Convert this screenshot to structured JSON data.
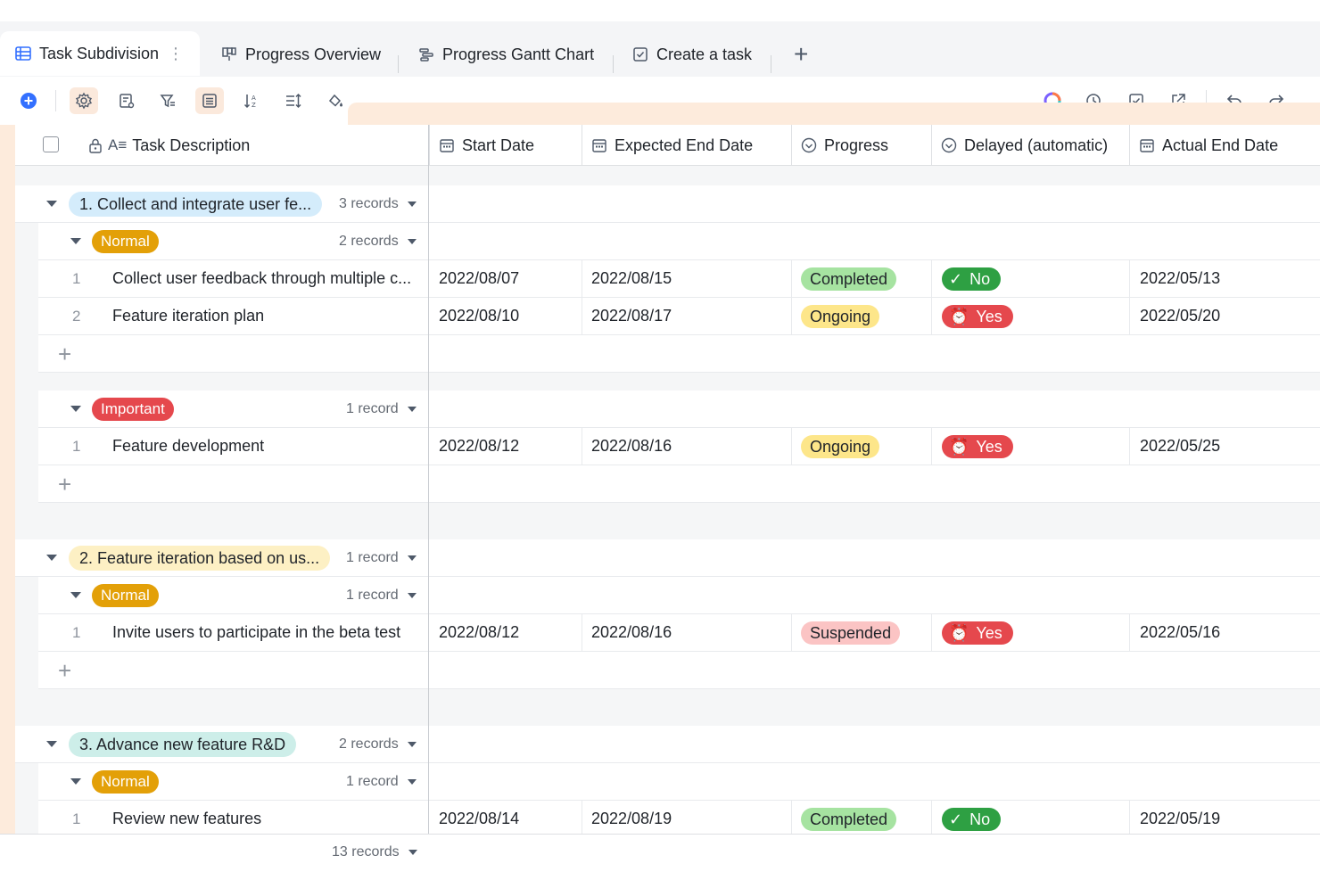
{
  "tabs": [
    {
      "label": "Task Subdivision",
      "icon": "grid-table-icon"
    },
    {
      "label": "Progress Overview",
      "icon": "dashboard-icon"
    },
    {
      "label": "Progress Gantt Chart",
      "icon": "gantt-icon"
    },
    {
      "label": "Create a task",
      "icon": "form-icon"
    }
  ],
  "toolbar_icons": [
    "add-record-icon",
    "settings-icon",
    "field-config-icon",
    "filter-icon",
    "group-icon",
    "sort-icon",
    "row-height-icon",
    "fill-color-icon",
    "ai-assistant-icon",
    "history-icon",
    "checklist-icon",
    "share-icon",
    "undo-icon",
    "redo-icon"
  ],
  "columns": [
    {
      "label": "Task Description",
      "icon": "lock-text-icon"
    },
    {
      "label": "Start Date",
      "icon": "date-icon"
    },
    {
      "label": "Expected End Date",
      "icon": "date-icon"
    },
    {
      "label": "Progress",
      "icon": "single-select-icon"
    },
    {
      "label": "Delayed (automatic)",
      "icon": "single-select-icon"
    },
    {
      "label": "Actual End Date",
      "icon": "date-icon"
    }
  ],
  "groups": [
    {
      "label": "1. Collect and integrate user fe...",
      "count": "3 records",
      "color": "#d4ecfb",
      "subgroups": [
        {
          "label": "Normal",
          "count": "2 records",
          "color": "#e3a008",
          "rows": [
            {
              "num": "1",
              "desc": "Collect user feedback through multiple c...",
              "start": "2022/08/07",
              "expected": "2022/08/15",
              "progress": "Completed",
              "progress_color": "#a6e3a1",
              "delayed": "No",
              "delayed_color": "#2ea043",
              "delayed_icon": "check-icon",
              "actual": "2022/05/13"
            },
            {
              "num": "2",
              "desc": "Feature iteration plan",
              "start": "2022/08/10",
              "expected": "2022/08/17",
              "progress": "Ongoing",
              "progress_color": "#fde68a",
              "delayed": "Yes",
              "delayed_color": "#e5484d",
              "delayed_icon": "alarm-icon",
              "actual": "2022/05/20"
            }
          ]
        },
        {
          "label": "Important",
          "count": "1 record",
          "color": "#e5484d",
          "rows": [
            {
              "num": "1",
              "desc": "Feature development",
              "start": "2022/08/12",
              "expected": "2022/08/16",
              "progress": "Ongoing",
              "progress_color": "#fde68a",
              "delayed": "Yes",
              "delayed_color": "#e5484d",
              "delayed_icon": "alarm-icon",
              "actual": "2022/05/25"
            }
          ]
        }
      ]
    },
    {
      "label": "2. Feature iteration based on us...",
      "count": "1 record",
      "color": "#fdf0c4",
      "subgroups": [
        {
          "label": "Normal",
          "count": "1 record",
          "color": "#e3a008",
          "rows": [
            {
              "num": "1",
              "desc": "Invite users to participate in the beta test",
              "start": "2022/08/12",
              "expected": "2022/08/16",
              "progress": "Suspended",
              "progress_color": "#fbc4c4",
              "delayed": "Yes",
              "delayed_color": "#e5484d",
              "delayed_icon": "alarm-icon",
              "actual": "2022/05/16"
            }
          ]
        }
      ]
    },
    {
      "label": "3. Advance new feature R&D",
      "count": "2 records",
      "color": "#cdeee9",
      "subgroups": [
        {
          "label": "Normal",
          "count": "1 record",
          "color": "#e3a008",
          "rows": [
            {
              "num": "1",
              "desc": "Review new features",
              "start": "2022/08/14",
              "expected": "2022/08/19",
              "progress": "Completed",
              "progress_color": "#a6e3a1",
              "delayed": "No",
              "delayed_color": "#2ea043",
              "delayed_icon": "check-icon",
              "actual": "2022/05/19"
            }
          ]
        }
      ]
    }
  ],
  "footer": {
    "count": "13 records"
  }
}
